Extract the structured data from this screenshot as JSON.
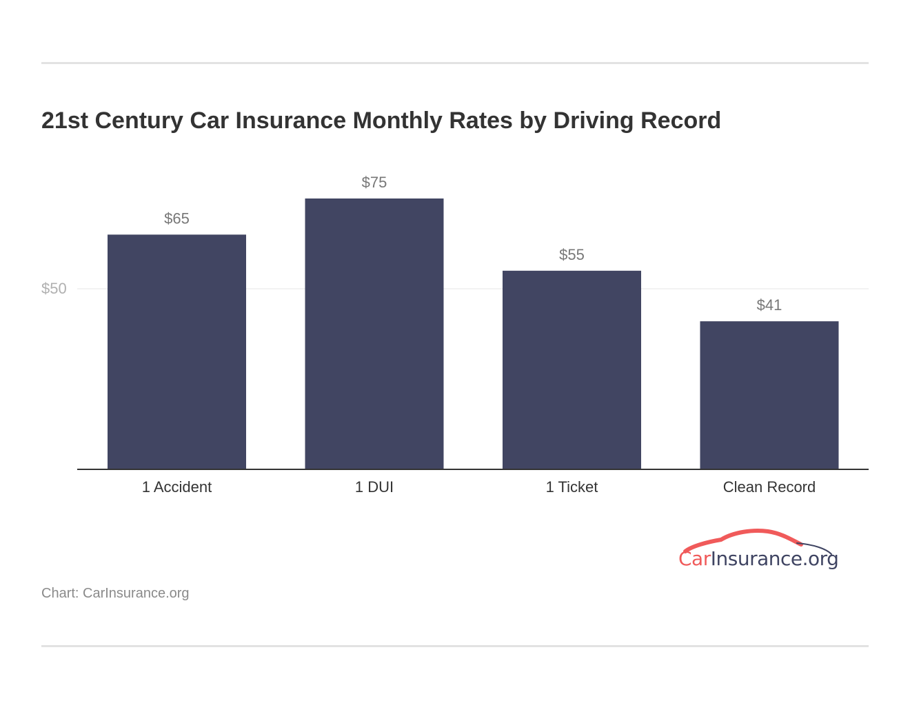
{
  "header": {
    "title": "21st Century Car Insurance Monthly Rates by Driving Record"
  },
  "chart_data": {
    "type": "bar",
    "title": "21st Century Car Insurance Monthly Rates by Driving Record",
    "categories": [
      "1 Accident",
      "1 DUI",
      "1 Ticket",
      "Clean Record"
    ],
    "values": [
      65,
      75,
      55,
      41
    ],
    "value_labels": [
      "$65",
      "$75",
      "$55",
      "$41"
    ],
    "ylim": [
      0,
      75
    ],
    "yticks": [
      50
    ],
    "ytick_labels": [
      "$50"
    ],
    "grid": true,
    "xlabel": "",
    "ylabel": "",
    "bar_color": "#414562"
  },
  "footer": {
    "source": "Chart: CarInsurance.org"
  },
  "logo": {
    "car_part": "Car",
    "rest_part": "Insurance.org",
    "car_color": "#f05a5a",
    "rest_color": "#3f4462"
  }
}
